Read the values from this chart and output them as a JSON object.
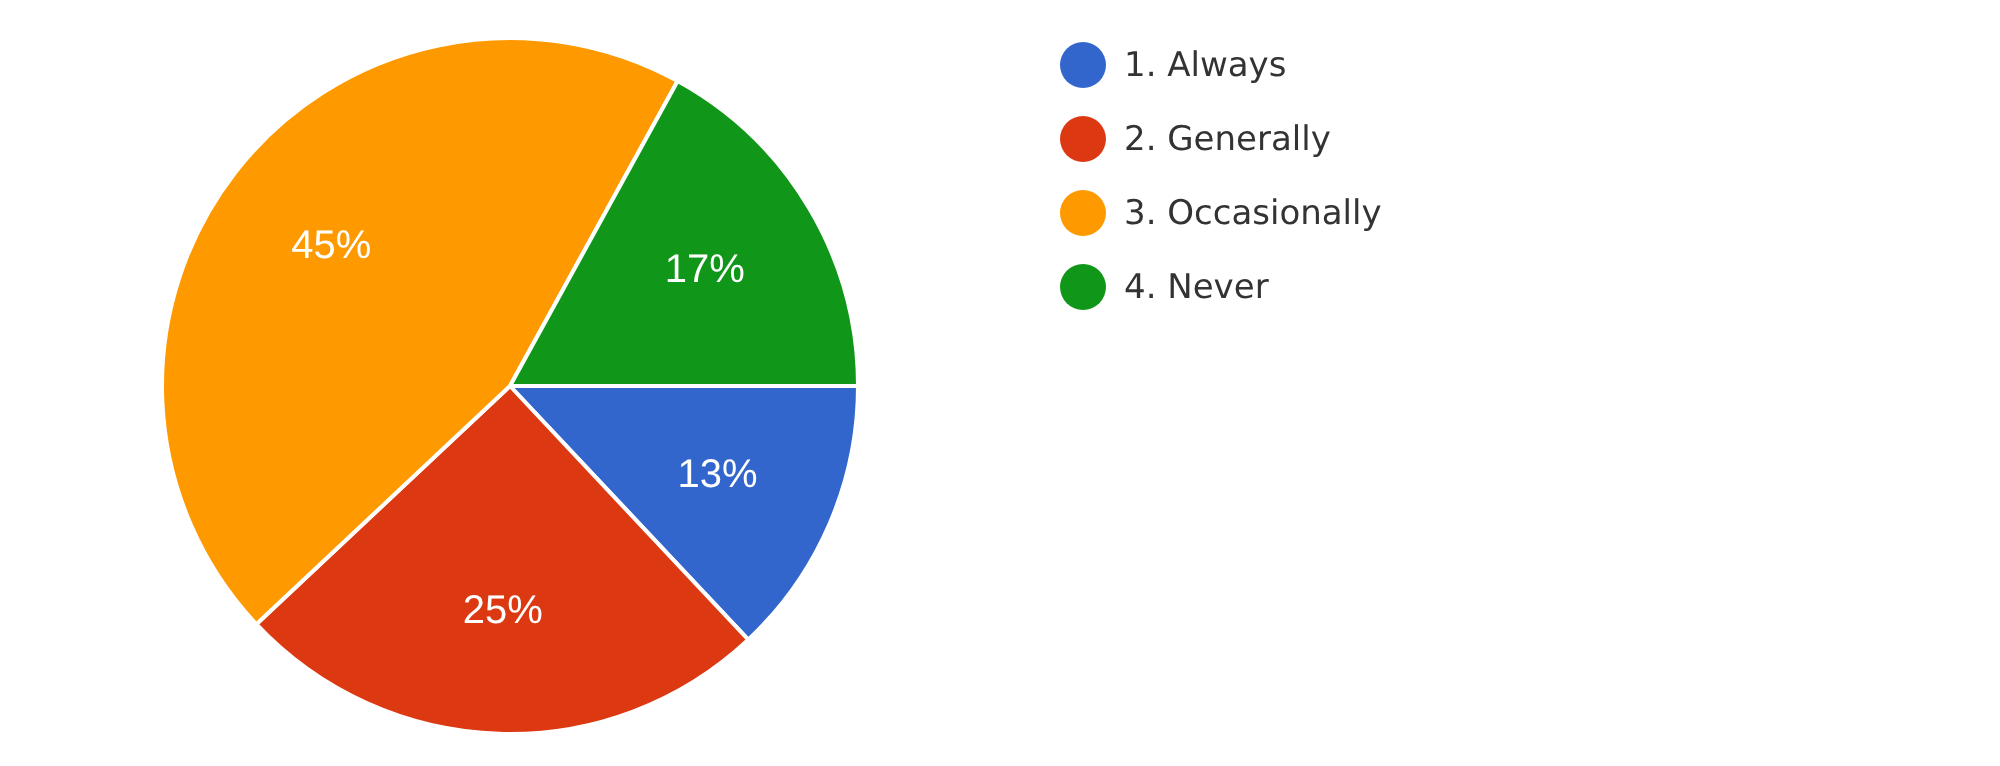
{
  "chart_data": {
    "type": "pie",
    "categories": [
      "1. Always",
      "2. Generally",
      "3. Occasionally",
      "4. Never"
    ],
    "values": [
      13,
      25,
      45,
      17
    ],
    "colors": [
      "#3366cc",
      "#dc3912",
      "#ff9900",
      "#109618"
    ],
    "value_labels": [
      "13%",
      "25%",
      "45%",
      "17%"
    ],
    "legend": "top right"
  }
}
